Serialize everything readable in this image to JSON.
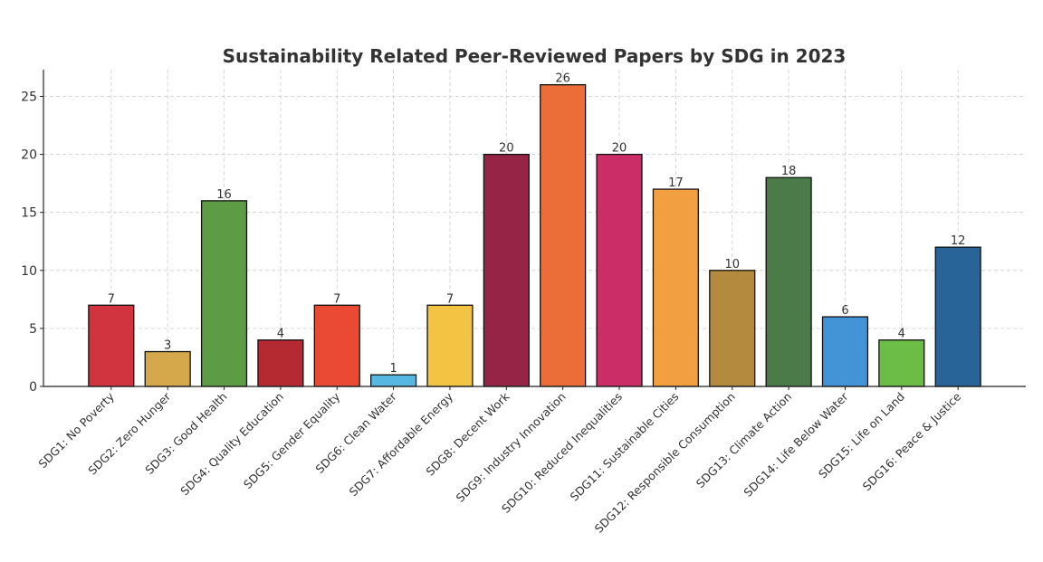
{
  "chart_data": {
    "type": "bar",
    "title": "Sustainability Related Peer-Reviewed Papers by SDG in 2023",
    "xlabel": "",
    "ylabel": "",
    "ylim": [
      0,
      27.3
    ],
    "yticks": [
      0,
      5,
      10,
      15,
      20,
      25
    ],
    "grid": true,
    "categories": [
      "SDG1: No Poverty",
      "SDG2: Zero Hunger",
      "SDG3: Good Health",
      "SDG4: Quality Education",
      "SDG5: Gender Equality",
      "SDG6: Clean Water",
      "SDG7: Affordable Energy",
      "SDG8: Decent Work",
      "SDG9: Industry Innovation",
      "SDG10: Reduced Inequalities",
      "SDG11: Sustainable Cities",
      "SDG12: Responsible Consumption",
      "SDG13: Climate Action",
      "SDG14: Life Below Water",
      "SDG15: Life on Land",
      "SDG16: Peace & Justice"
    ],
    "values": [
      7,
      3,
      16,
      4,
      7,
      1,
      7,
      20,
      26,
      20,
      17,
      10,
      18,
      6,
      4,
      12
    ],
    "colors": [
      "#D1343E",
      "#D4A84B",
      "#5E9B45",
      "#B52A31",
      "#EA4A33",
      "#56B8E0",
      "#F3C343",
      "#962447",
      "#EB6E38",
      "#CB2D66",
      "#F29F42",
      "#B48A3F",
      "#4A7B48",
      "#4394D6",
      "#6CBD45",
      "#286498"
    ]
  }
}
